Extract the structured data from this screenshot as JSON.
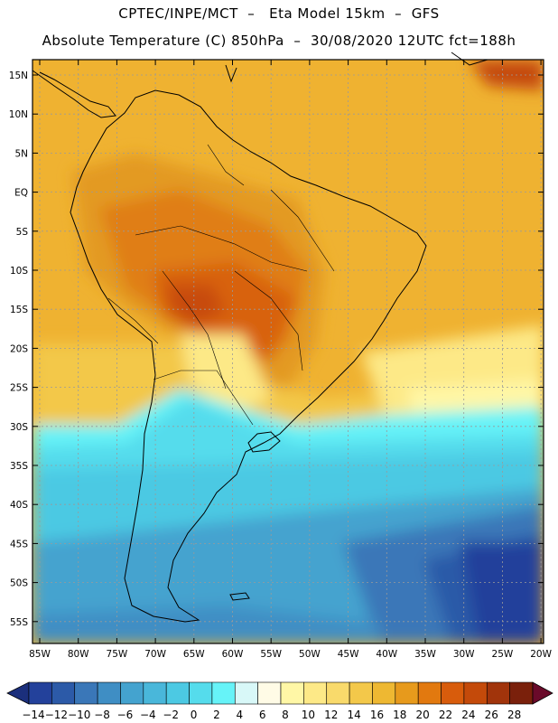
{
  "header": {
    "title_line1": "CPTEC/INPE/MCT  –   Eta Model 15km  –  GFS",
    "title_line2": "Absolute Temperature (C) 850hPa  –  30/08/2020 12UTC fct=188h"
  },
  "map": {
    "lon_ticks": [
      "85W",
      "80W",
      "75W",
      "70W",
      "65W",
      "60W",
      "55W",
      "50W",
      "45W",
      "40W",
      "35W",
      "30W",
      "25W",
      "20W"
    ],
    "lat_ticks": [
      "15N",
      "10N",
      "5N",
      "EQ",
      "5S",
      "10S",
      "15S",
      "20S",
      "25S",
      "30S",
      "35S",
      "40S",
      "45S",
      "50S",
      "55S"
    ]
  },
  "colorbar": {
    "labels": [
      "-14",
      "-12",
      "-10",
      "-8",
      "-6",
      "-4",
      "-2",
      "0",
      "2",
      "4",
      "6",
      "8",
      "10",
      "12",
      "14",
      "16",
      "18",
      "20",
      "22",
      "24",
      "26",
      "28"
    ],
    "colors": [
      "#23419b",
      "#2c5aa8",
      "#3a77b8",
      "#3f8ec4",
      "#44a3cf",
      "#49b7da",
      "#4cc9e3",
      "#55dcec",
      "#66f3f8",
      "#d8f8f8",
      "#fffbe6",
      "#fff7a6",
      "#fde987",
      "#f9da6b",
      "#f3c84a",
      "#eeb832",
      "#e79a1c",
      "#e2790f",
      "#d85c0c",
      "#c44a0a",
      "#a1340b",
      "#7a200b"
    ]
  }
}
